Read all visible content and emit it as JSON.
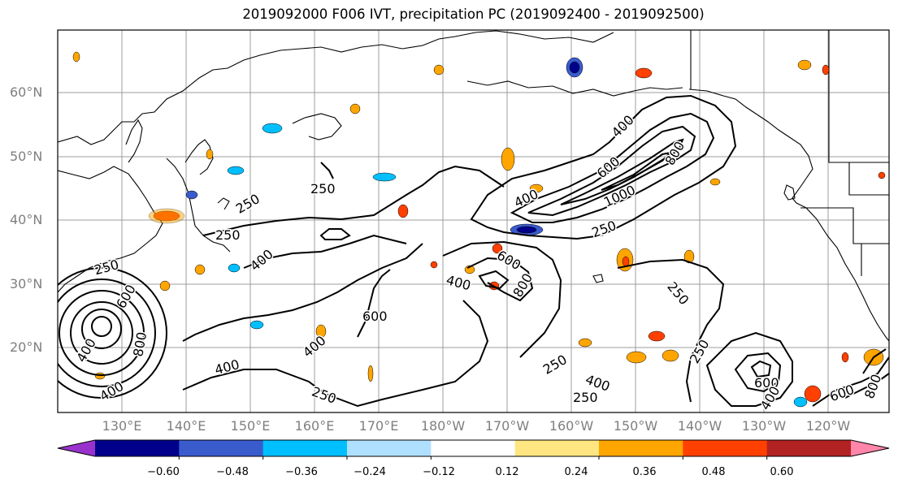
{
  "title": "2019092000 F006 IVT, precipitation PC (2019092400 - 2019092500)",
  "map": {
    "lat_labels": [
      "60°N",
      "50°N",
      "40°N",
      "30°N",
      "20°N"
    ],
    "lon_labels": [
      "130°E",
      "140°E",
      "150°E",
      "160°E",
      "170°E",
      "180°W",
      "170°W",
      "160°W",
      "150°W",
      "140°W",
      "130°W",
      "120°W"
    ],
    "ivt_contour_labels": [
      "250",
      "250",
      "250",
      "400",
      "400",
      "600",
      "400",
      "600",
      "800",
      "400",
      "400",
      "600",
      "800",
      "1000",
      "250",
      "250",
      "250",
      "250",
      "400",
      "250",
      "600",
      "400",
      "250",
      "400",
      "600",
      "800",
      "400",
      "250",
      "400",
      "600",
      "800"
    ]
  },
  "colorbar": {
    "colors": [
      "#9932cc",
      "#00008b",
      "#3a5bcc",
      "#00bfff",
      "#b0e0ff",
      "#ffffff",
      "#ffe680",
      "#ffa500",
      "#ff4000",
      "#b22222",
      "#ff85aa"
    ],
    "ticks": [
      "−0.60",
      "−0.48",
      "−0.36",
      "−0.24",
      "−0.12",
      "0.12",
      "0.24",
      "0.36",
      "0.48",
      "0.60"
    ]
  }
}
